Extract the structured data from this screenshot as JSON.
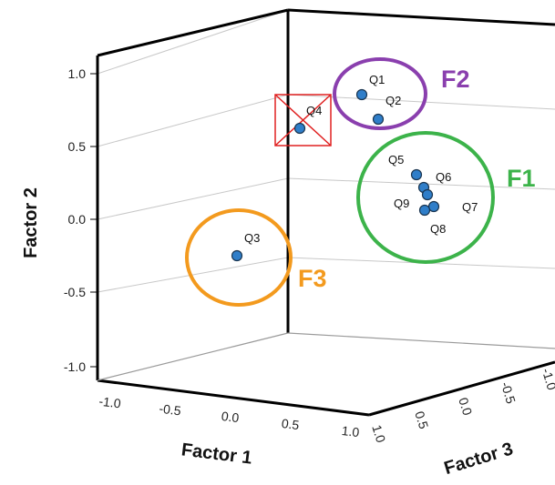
{
  "chart_data": {
    "type": "scatter",
    "projection": "3d",
    "axes": {
      "factor1": {
        "label": "Factor 1",
        "ticks": [
          "-1.0",
          "-0.5",
          "0.0",
          "0.5",
          "1.0"
        ],
        "range": [
          -1,
          1
        ]
      },
      "factor2": {
        "label": "Factor 2",
        "ticks": [
          "1.0",
          "0.5",
          "0.0",
          "-0.5",
          "-1.0"
        ],
        "range": [
          -1,
          1
        ]
      },
      "factor3": {
        "label": "Factor 3",
        "ticks": [
          "1.0",
          "0.5",
          "0.0",
          "-0.5",
          "-1.0"
        ],
        "range": [
          -1,
          1
        ]
      }
    },
    "grid": true,
    "point_color": "#2f7ec9",
    "points": [
      {
        "label": "Q1",
        "f1": 0.5,
        "f2": 0.85,
        "f3": 0.6
      },
      {
        "label": "Q2",
        "f1": 0.55,
        "f2": 0.7,
        "f3": 0.5
      },
      {
        "label": "Q4",
        "f1": 0.45,
        "f2": 0.6,
        "f3": 0.8
      },
      {
        "label": "Q3",
        "f1": -0.3,
        "f2": -0.25,
        "f3": 0.7
      },
      {
        "label": "Q5",
        "f1": 0.9,
        "f2": 0.25,
        "f3": 0.2
      },
      {
        "label": "Q6",
        "f1": 0.92,
        "f2": 0.2,
        "f3": 0.15
      },
      {
        "label": "Q7",
        "f1": 0.95,
        "f2": 0.15,
        "f3": 0.1
      },
      {
        "label": "Q9",
        "f1": 0.93,
        "f2": 0.05,
        "f3": 0.12
      },
      {
        "label": "Q8",
        "f1": 0.94,
        "f2": 0.05,
        "f3": 0.08
      }
    ],
    "groups": [
      {
        "label": "F1",
        "color": "#3cb34a",
        "members": [
          "Q5",
          "Q6",
          "Q7",
          "Q8",
          "Q9"
        ]
      },
      {
        "label": "F2",
        "color": "#8a3fae",
        "members": [
          "Q1",
          "Q2"
        ]
      },
      {
        "label": "F3",
        "color": "#f39a1e",
        "members": [
          "Q3"
        ]
      }
    ],
    "excluded": {
      "label": "Q4",
      "color": "#e02020",
      "marker": "crossed-box"
    }
  }
}
